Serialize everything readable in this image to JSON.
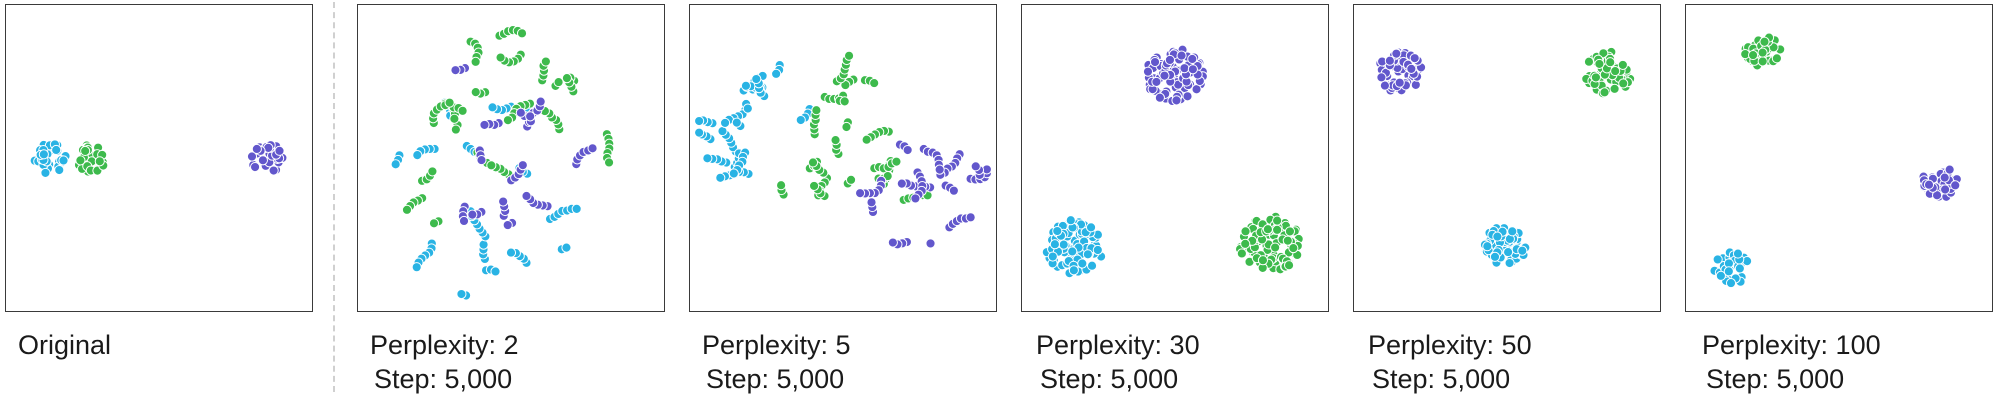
{
  "colors": {
    "cyan": "#29b3e4",
    "green": "#3dba4c",
    "purple": "#6257cc"
  },
  "chart_data": [
    {
      "type": "scatter",
      "caption": [
        "Original"
      ],
      "clusters": [
        {
          "color": "cyan",
          "cx": 0.14,
          "cy": 0.5,
          "r": 0.055,
          "n": 34,
          "mode": "blob"
        },
        {
          "color": "green",
          "cx": 0.28,
          "cy": 0.5,
          "r": 0.05,
          "n": 32,
          "mode": "blob"
        },
        {
          "color": "purple",
          "cx": 0.85,
          "cy": 0.5,
          "r": 0.055,
          "n": 34,
          "mode": "blob"
        }
      ]
    },
    {
      "type": "scatter",
      "caption": [
        "Perplexity: 2",
        "Step: 5,000"
      ],
      "clusters": [
        {
          "color": "cyan",
          "cx": 0.42,
          "cy": 0.63,
          "r": 0.38,
          "n": 62,
          "mode": "fragments"
        },
        {
          "color": "green",
          "cx": 0.52,
          "cy": 0.48,
          "r": 0.4,
          "n": 92,
          "mode": "fragments"
        },
        {
          "color": "purple",
          "cx": 0.45,
          "cy": 0.42,
          "r": 0.3,
          "n": 52,
          "mode": "fragments"
        }
      ]
    },
    {
      "type": "scatter",
      "caption": [
        "Perplexity: 5",
        "Step: 5,000"
      ],
      "clusters": [
        {
          "color": "cyan",
          "cx": 0.22,
          "cy": 0.38,
          "r": 0.2,
          "n": 72,
          "mode": "fragments"
        },
        {
          "color": "green",
          "cx": 0.52,
          "cy": 0.48,
          "r": 0.26,
          "n": 80,
          "mode": "fragments"
        },
        {
          "color": "purple",
          "cx": 0.78,
          "cy": 0.62,
          "r": 0.2,
          "n": 64,
          "mode": "fragments"
        }
      ]
    },
    {
      "type": "scatter",
      "caption": [
        "Perplexity: 30",
        "Step: 5,000"
      ],
      "clusters": [
        {
          "color": "purple",
          "cx": 0.5,
          "cy": 0.23,
          "r": 0.095,
          "n": 95,
          "mode": "blob"
        },
        {
          "color": "cyan",
          "cx": 0.17,
          "cy": 0.79,
          "r": 0.095,
          "n": 95,
          "mode": "blob"
        },
        {
          "color": "green",
          "cx": 0.81,
          "cy": 0.78,
          "r": 0.1,
          "n": 100,
          "mode": "blob"
        }
      ]
    },
    {
      "type": "scatter",
      "caption": [
        "Perplexity: 50",
        "Step: 5,000"
      ],
      "clusters": [
        {
          "color": "purple",
          "cx": 0.15,
          "cy": 0.22,
          "r": 0.072,
          "n": 62,
          "mode": "blob"
        },
        {
          "color": "green",
          "cx": 0.83,
          "cy": 0.22,
          "r": 0.077,
          "n": 66,
          "mode": "blob"
        },
        {
          "color": "cyan",
          "cx": 0.49,
          "cy": 0.79,
          "r": 0.072,
          "n": 62,
          "mode": "blob"
        }
      ]
    },
    {
      "type": "scatter",
      "caption": [
        "Perplexity: 100",
        "Step: 5,000"
      ],
      "clusters": [
        {
          "color": "green",
          "cx": 0.25,
          "cy": 0.15,
          "r": 0.058,
          "n": 42,
          "mode": "blob"
        },
        {
          "color": "purple",
          "cx": 0.83,
          "cy": 0.58,
          "r": 0.058,
          "n": 42,
          "mode": "blob"
        },
        {
          "color": "cyan",
          "cx": 0.15,
          "cy": 0.86,
          "r": 0.058,
          "n": 40,
          "mode": "blob"
        }
      ]
    }
  ]
}
